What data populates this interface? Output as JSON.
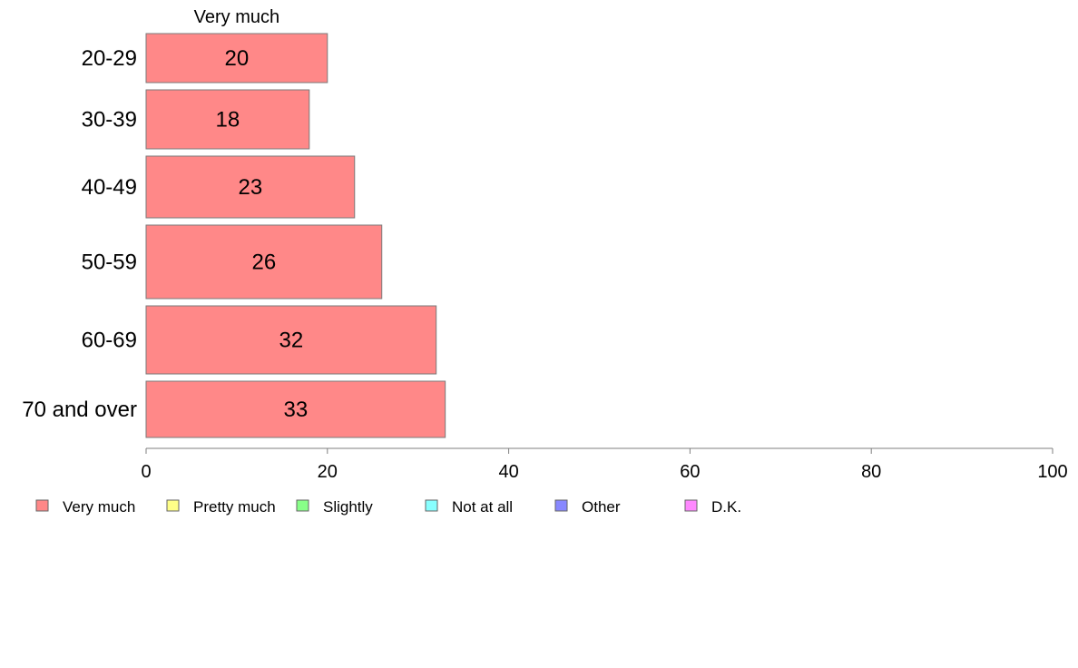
{
  "chart_data": {
    "type": "bar",
    "orientation": "horizontal",
    "stacked": true,
    "categories": [
      "20-29",
      "30-39",
      "40-49",
      "50-59",
      "60-69",
      "70 and over"
    ],
    "series": [
      {
        "name": "Very much",
        "color": "#ff8888",
        "values": [
          20,
          18,
          23,
          26,
          32,
          33
        ]
      }
    ],
    "series_header": "Very much",
    "xlim": [
      0,
      100
    ],
    "xticks": [
      0,
      20,
      40,
      60,
      80,
      100
    ],
    "grid": false,
    "legend": {
      "position": "bottom-left",
      "items": [
        {
          "label": "Very much",
          "color": "#ff8888"
        },
        {
          "label": "Pretty much",
          "color": "#ffff88"
        },
        {
          "label": "Slightly",
          "color": "#88ff88"
        },
        {
          "label": "Not at all",
          "color": "#88ffff"
        },
        {
          "label": "Other",
          "color": "#8888ff"
        },
        {
          "label": "D.K.",
          "color": "#ff88ff"
        }
      ]
    }
  }
}
